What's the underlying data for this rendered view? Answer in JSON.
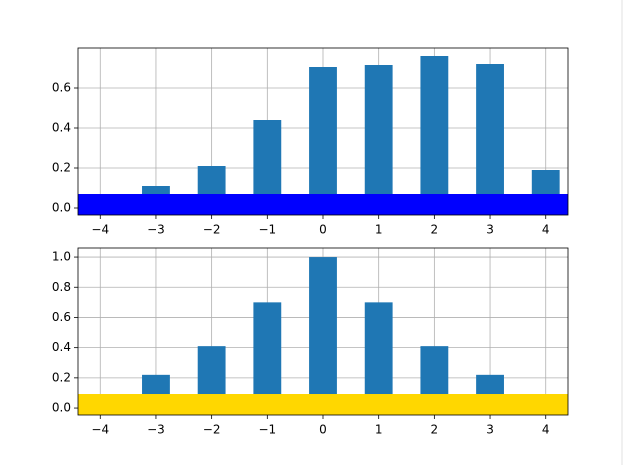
{
  "chart_data": [
    {
      "type": "bar",
      "x": [
        -3,
        -2,
        -1,
        0,
        1,
        2,
        3,
        4
      ],
      "values": [
        0.11,
        0.21,
        0.44,
        0.705,
        0.715,
        0.76,
        0.72,
        0.19
      ],
      "color": "#1f77b4",
      "bar_width": 0.5,
      "xlim": [
        -4.4,
        4.4
      ],
      "ylim": [
        -0.035,
        0.8
      ],
      "xticks": [
        {
          "value": -4,
          "label": "−4"
        },
        {
          "value": -3,
          "label": "−3"
        },
        {
          "value": -2,
          "label": "−2"
        },
        {
          "value": -1,
          "label": "−1"
        },
        0,
        1,
        2,
        3,
        4
      ],
      "yticks": [
        {
          "value": 0,
          "label": "0.0"
        },
        0.2,
        0.4,
        0.6
      ],
      "grid": true,
      "band": {
        "ymax": 0.07,
        "color": "#0000ff"
      }
    },
    {
      "type": "bar",
      "x": [
        -3,
        -2,
        -1,
        0,
        1,
        2,
        3
      ],
      "values": [
        0.22,
        0.41,
        0.7,
        1.0,
        0.7,
        0.41,
        0.22
      ],
      "color": "#1f77b4",
      "bar_width": 0.5,
      "xlim": [
        -4.4,
        4.4
      ],
      "ylim": [
        -0.046,
        1.06
      ],
      "xticks": [
        {
          "value": -4,
          "label": "−4"
        },
        {
          "value": -3,
          "label": "−3"
        },
        {
          "value": -2,
          "label": "−2"
        },
        {
          "value": -1,
          "label": "−1"
        },
        0,
        1,
        2,
        3,
        4
      ],
      "yticks": [
        {
          "value": 0,
          "label": "0.0"
        },
        0.2,
        0.4,
        0.6,
        0.8,
        {
          "value": 1,
          "label": "1.0"
        }
      ],
      "grid": true,
      "band": {
        "ymax": 0.093,
        "color": "#ffd700"
      }
    }
  ]
}
